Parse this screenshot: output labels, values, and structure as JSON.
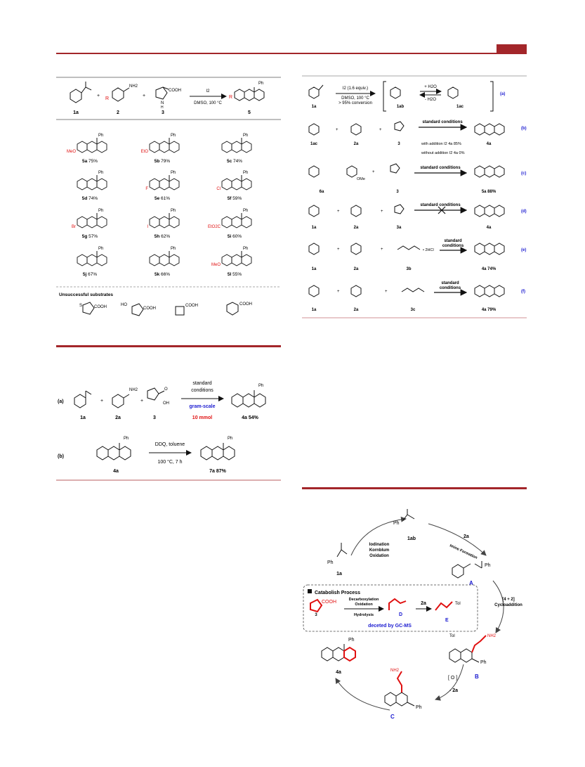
{
  "colors": {
    "accent": "#a3262a",
    "red": "#e01010",
    "blue": "#1a1ad0"
  },
  "top_scheme": {
    "reagent": "I2",
    "conditions": "DMSO, 100 °C",
    "labels": [
      "1a",
      "2",
      "3",
      "5"
    ],
    "plus": "+",
    "R": "R",
    "cooh": "COOH",
    "nh2": "NH2",
    "nh": "N",
    "h": "H",
    "ph": "Ph"
  },
  "products": [
    {
      "sub": "MeO",
      "label": "5a",
      "yield": "75%"
    },
    {
      "sub": "EtO",
      "label": "5b",
      "yield": "79%"
    },
    {
      "sub": "",
      "label": "5c",
      "yield": "74%"
    },
    {
      "sub": "",
      "label": "5d",
      "yield": "74%"
    },
    {
      "sub": "F",
      "label": "5e",
      "yield": "61%"
    },
    {
      "sub": "Cl",
      "label": "5f",
      "yield": "59%"
    },
    {
      "sub": "Br",
      "label": "5g",
      "yield": "57%"
    },
    {
      "sub": "I",
      "label": "5h",
      "yield": "62%"
    },
    {
      "sub": "EtO2C",
      "label": "5i",
      "yield": "60%"
    },
    {
      "sub": "",
      "label": "5j",
      "yield": "67%"
    },
    {
      "sub": "",
      "label": "5k",
      "yield": "66%"
    },
    {
      "sub": "MeO",
      "label": "5l",
      "yield": "55%"
    }
  ],
  "unsuccessful": {
    "title": "Unsuccessful substrates",
    "items": [
      "COOH",
      "COOH",
      "COOH",
      "COOH"
    ],
    "s": "S",
    "ho": "HO"
  },
  "gram": {
    "conditions": [
      "standard",
      "conditions"
    ],
    "scale": "gram-scale",
    "amount": "10 mmol",
    "tag_a": "(a)",
    "tag_b": "(b)",
    "labels": [
      "1a",
      "2a",
      "3",
      "4a 54%"
    ],
    "ddq": "DDQ, toluene",
    "temp": "100 °C, 7 h",
    "labels_b": [
      "4a",
      "7a 87%"
    ],
    "oh": "OH",
    "o": "O"
  },
  "controls": {
    "a": {
      "tag": "(a)",
      "reagent": "I2 (1.6 equiv.)",
      "cond1": "DMSO, 100 °C",
      "cond2": "> 95% conversion",
      "h2o_plus": "+ H2O",
      "h2o_minus": "- H2O",
      "labels": [
        "1a",
        "1ab",
        "1ac"
      ]
    },
    "b": {
      "tag": "(b)",
      "arrow": "standard conditions",
      "with": "with addition I2 4a  85%",
      "without": "without addition I2 4a   0%",
      "labels": [
        "1ac",
        "2a",
        "3",
        "4a"
      ]
    },
    "c": {
      "tag": "(c)",
      "arrow": "standard conditions",
      "labels": [
        "6a",
        "3",
        "5a 88%"
      ],
      "ome": "OMe"
    },
    "d": {
      "tag": "(d)",
      "arrow": "standard conditions",
      "labels": [
        "1a",
        "2a",
        "3a",
        "4a"
      ]
    },
    "e": {
      "tag": "(e)",
      "arrow": [
        "standard",
        "conditions"
      ],
      "labels": [
        "1a",
        "2a",
        "3b",
        "4a 74%"
      ],
      "hcl": "• 2HCl"
    },
    "f": {
      "tag": "(f)",
      "arrow": [
        "standard",
        "conditions"
      ],
      "labels": [
        "1a",
        "2a",
        "3c",
        "4a 79%"
      ]
    }
  },
  "mechanism": {
    "step1": [
      "Iodination",
      "Kornblum",
      "Oxidation"
    ],
    "imine": "Imine Formation",
    "cyclo": [
      "[4 + 2]",
      "Cycloaddition"
    ],
    "ox": "[ O ]",
    "minus2a": "- 2a",
    "twoa": "2a",
    "catabolism": "Catabolish Process",
    "decarb": [
      "Decarboxylation",
      "Oxidation"
    ],
    "hydro": "Hydrolysis",
    "detected": "deceted by GC-MS",
    "labels": {
      "a": "1a",
      "ab": "1ab",
      "A": "A",
      "B": "B",
      "C": "C",
      "D": "D",
      "E": "E",
      "three": "3",
      "fa": "4a"
    },
    "tol": "Tol",
    "nh2": "NH2"
  }
}
